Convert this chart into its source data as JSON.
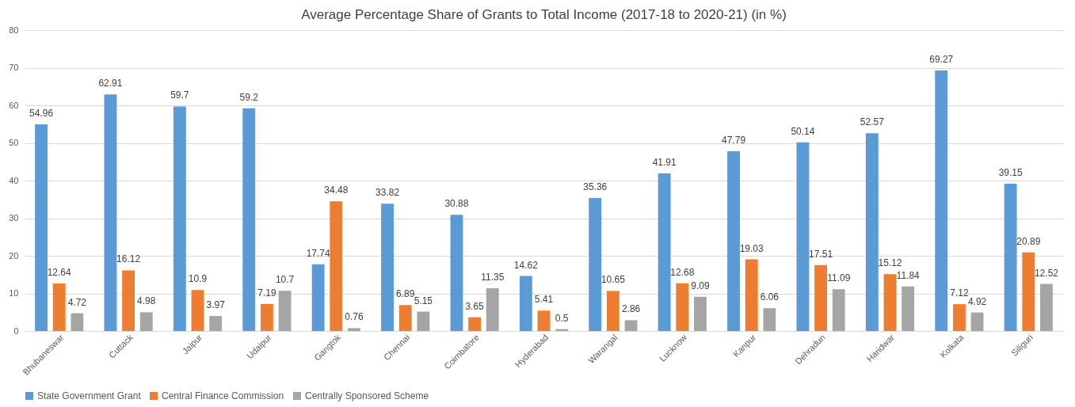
{
  "chart_data": {
    "type": "bar",
    "title": "Average Percentage Share of Grants to Total Income (2017-18 to 2020-21) (in %)",
    "categories": [
      "Bhubaneswar",
      "Cuttack",
      "Jaipur",
      "Udaipur",
      "Gangtok",
      "Chennai",
      "Coimbatore",
      "Hyderabad",
      "Warangal",
      "Lucknow",
      "Kanpur",
      "Dehradun",
      "Haridwar",
      "Kolkata",
      "Siliguri"
    ],
    "series": [
      {
        "name": "State Government Grant",
        "color": "#5b9bd5",
        "values": [
          54.96,
          62.91,
          59.7,
          59.2,
          17.74,
          33.82,
          30.88,
          14.62,
          35.36,
          41.91,
          47.79,
          50.14,
          52.57,
          69.27,
          39.15
        ]
      },
      {
        "name": "Central Finance Commission",
        "color": "#ed7d31",
        "values": [
          12.64,
          16.12,
          10.9,
          7.19,
          34.48,
          6.89,
          3.65,
          5.41,
          10.65,
          12.68,
          19.03,
          17.51,
          15.12,
          7.12,
          20.89
        ]
      },
      {
        "name": "Centrally Sponsored Scheme",
        "color": "#a5a5a5",
        "values": [
          4.72,
          4.98,
          3.97,
          10.7,
          0.76,
          5.15,
          11.35,
          0.5,
          2.86,
          9.09,
          6.06,
          11.09,
          11.84,
          4.92,
          12.52
        ]
      }
    ],
    "ylim": [
      0,
      80
    ],
    "yticks": [
      0,
      10,
      20,
      30,
      40,
      50,
      60,
      70,
      80
    ],
    "grid": "y",
    "legend": "bottom",
    "data_labels": true
  }
}
